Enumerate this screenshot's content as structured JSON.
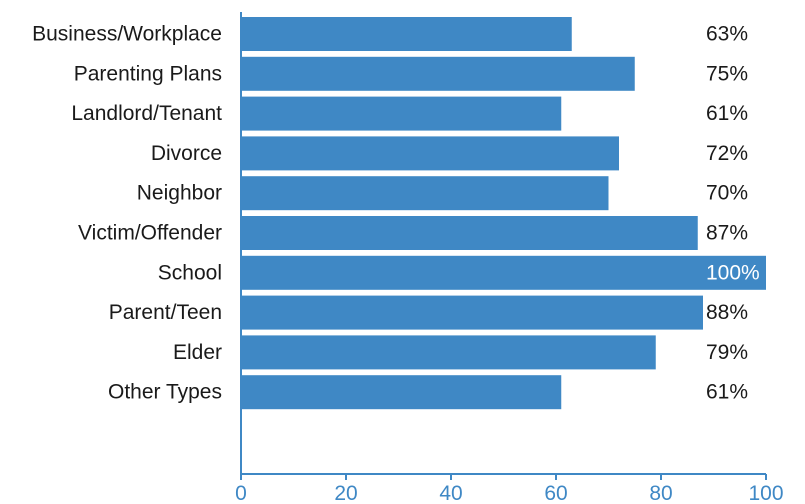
{
  "chart_data": {
    "type": "bar",
    "orientation": "horizontal",
    "title": "",
    "xlabel": "",
    "ylabel": "",
    "categories": [
      "Business/Workplace",
      "Parenting Plans",
      "Landlord/Tenant",
      "Divorce",
      "Neighbor",
      "Victim/Offender",
      "School",
      "Parent/Teen",
      "Elder",
      "Other Types"
    ],
    "values": [
      63,
      75,
      61,
      72,
      70,
      87,
      100,
      88,
      79,
      61
    ],
    "value_labels": [
      "63%",
      "75%",
      "61%",
      "72%",
      "70%",
      "87%",
      "100%",
      "88%",
      "79%",
      "61%"
    ],
    "xlim": [
      0,
      100
    ],
    "x_ticks": [
      0,
      20,
      40,
      60,
      80,
      100
    ],
    "grid": false,
    "legend": "none",
    "colors": {
      "bar": "#3f88c5",
      "axis": "#3f88c5",
      "tick_label": "#3f88c5",
      "text": "#1a1a1a",
      "inside_label": "#ffffff"
    }
  }
}
